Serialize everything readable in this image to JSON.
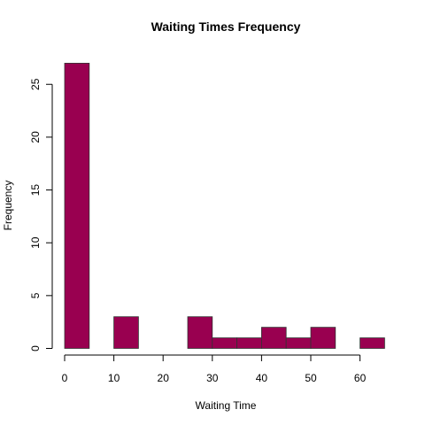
{
  "chart_data": {
    "type": "bar",
    "title": "Waiting Times Frequency",
    "xlabel": "Waiting Time",
    "ylabel": "Frequency",
    "bins": [
      {
        "from": 0,
        "to": 5,
        "count": 27
      },
      {
        "from": 5,
        "to": 10,
        "count": 0
      },
      {
        "from": 10,
        "to": 15,
        "count": 3
      },
      {
        "from": 15,
        "to": 20,
        "count": 0
      },
      {
        "from": 20,
        "to": 25,
        "count": 0
      },
      {
        "from": 25,
        "to": 30,
        "count": 3
      },
      {
        "from": 30,
        "to": 35,
        "count": 1
      },
      {
        "from": 35,
        "to": 40,
        "count": 1
      },
      {
        "from": 40,
        "to": 45,
        "count": 2
      },
      {
        "from": 45,
        "to": 50,
        "count": 1
      },
      {
        "from": 50,
        "to": 55,
        "count": 2
      },
      {
        "from": 55,
        "to": 60,
        "count": 0
      },
      {
        "from": 60,
        "to": 65,
        "count": 1
      }
    ],
    "xlim": [
      0,
      65
    ],
    "ylim": [
      0,
      27
    ],
    "x_ticks": [
      "0",
      "10",
      "20",
      "30",
      "40",
      "50",
      "60"
    ],
    "y_ticks": [
      "0",
      "5",
      "10",
      "15",
      "20",
      "25"
    ],
    "bar_color": "#990050",
    "grid": false
  }
}
